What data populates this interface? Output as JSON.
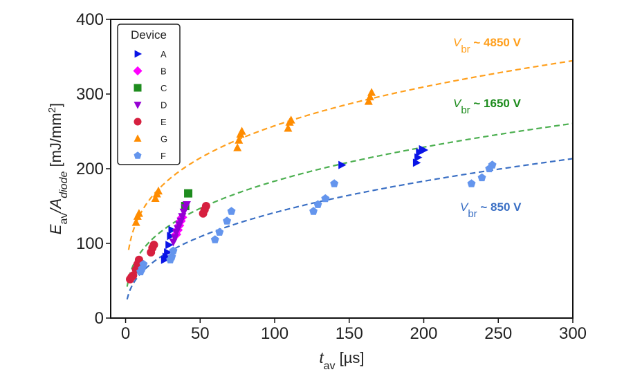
{
  "chart_data": {
    "type": "scatter",
    "xlabel": {
      "main": "t",
      "sub": "av",
      "unit": " [µs]"
    },
    "ylabel": {
      "p1": "E",
      "sub1": "av",
      "p2": "/A",
      "sub2": "diode",
      "unit": " [mJ/mm",
      "sup": "2",
      "close": "]"
    },
    "xlim": [
      -10,
      300
    ],
    "ylim": [
      0,
      400
    ],
    "xticks": [
      0,
      50,
      100,
      150,
      200,
      250,
      300
    ],
    "yticks": [
      0,
      100,
      200,
      300,
      400
    ],
    "grid": false,
    "legend": {
      "title": "Device",
      "placement": "top-left"
    },
    "series": [
      {
        "name": "A",
        "marker": "triangle-right",
        "color": "#0a14e6",
        "points": [
          [
            26,
            78
          ],
          [
            27,
            82
          ],
          [
            28,
            88
          ],
          [
            29,
            98
          ],
          [
            30,
            110
          ],
          [
            31,
            118
          ],
          [
            145,
            205
          ],
          [
            195,
            208
          ],
          [
            196,
            215
          ],
          [
            197,
            222
          ],
          [
            199,
            226
          ],
          [
            200,
            225
          ]
        ]
      },
      {
        "name": "B",
        "marker": "diamond",
        "color": "#ff00ff",
        "points": [
          [
            34,
            112
          ],
          [
            35,
            118
          ],
          [
            36,
            124
          ],
          [
            37,
            130
          ],
          [
            38,
            135
          ]
        ]
      },
      {
        "name": "C",
        "marker": "square",
        "color": "#1e8c1e",
        "points": [
          [
            40,
            150
          ],
          [
            42,
            167
          ]
        ]
      },
      {
        "name": "D",
        "marker": "triangle-down",
        "color": "#9400d3",
        "points": [
          [
            32,
            102
          ],
          [
            33,
            108
          ],
          [
            34,
            115
          ],
          [
            35,
            120
          ],
          [
            36,
            125
          ],
          [
            37,
            130
          ],
          [
            38,
            136
          ],
          [
            39,
            142
          ],
          [
            40,
            148
          ],
          [
            41,
            152
          ]
        ]
      },
      {
        "name": "E",
        "marker": "circle",
        "color": "#d6203f",
        "points": [
          [
            3,
            52
          ],
          [
            4,
            55
          ],
          [
            5,
            57
          ],
          [
            7,
            65
          ],
          [
            8,
            72
          ],
          [
            9,
            78
          ],
          [
            17,
            88
          ],
          [
            18,
            94
          ],
          [
            19,
            98
          ],
          [
            52,
            140
          ],
          [
            53,
            145
          ],
          [
            54,
            150
          ]
        ]
      },
      {
        "name": "G",
        "marker": "triangle-up",
        "color": "#ff8c00",
        "points": [
          [
            7,
            128
          ],
          [
            8,
            136
          ],
          [
            9,
            140
          ],
          [
            20,
            160
          ],
          [
            21,
            166
          ],
          [
            22,
            170
          ],
          [
            75,
            228
          ],
          [
            76,
            238
          ],
          [
            77,
            246
          ],
          [
            78,
            250
          ],
          [
            109,
            254
          ],
          [
            110,
            262
          ],
          [
            111,
            265
          ],
          [
            163,
            290
          ],
          [
            164,
            296
          ],
          [
            165,
            302
          ]
        ]
      },
      {
        "name": "F",
        "marker": "pentagon",
        "color": "#6495ed",
        "points": [
          [
            10,
            62
          ],
          [
            11,
            66
          ],
          [
            12,
            72
          ],
          [
            30,
            78
          ],
          [
            31,
            82
          ],
          [
            32,
            90
          ],
          [
            60,
            105
          ],
          [
            63,
            115
          ],
          [
            68,
            130
          ],
          [
            71,
            143
          ],
          [
            126,
            143
          ],
          [
            129,
            152
          ],
          [
            134,
            160
          ],
          [
            140,
            180
          ],
          [
            232,
            180
          ],
          [
            239,
            188
          ],
          [
            244,
            200
          ],
          [
            246,
            205
          ]
        ]
      }
    ],
    "fits": [
      {
        "color": "#ff9f1c",
        "a": 76,
        "b": 0.265,
        "x0": 2
      },
      {
        "color": "#4caf50",
        "a": 42,
        "b": 0.32,
        "x0": 1
      },
      {
        "color": "#3a6fc4",
        "a": 25,
        "b": 0.376,
        "x0": 1
      }
    ],
    "annotations": [
      {
        "main": "V",
        "sub": "br",
        "text": " ~ 4850 V",
        "color": "#ff9f1c"
      },
      {
        "main": "V",
        "sub": "br",
        "text": " ~ 1650 V",
        "color": "#1e8c1e"
      },
      {
        "main": "V",
        "sub": "br",
        "text": " ~ 850 V",
        "color": "#3a6fc4"
      }
    ]
  }
}
